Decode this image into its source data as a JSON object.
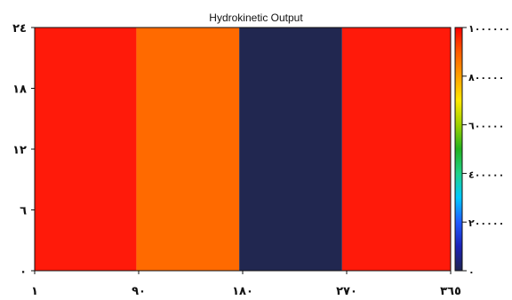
{
  "chart_data": {
    "type": "heatmap",
    "title": "Hydrokinetic Output",
    "x_ticks": [
      "١",
      "٩٠",
      "١٨٠",
      "٢٧٠",
      "٣٦٥"
    ],
    "y_ticks": [
      "٠",
      "٦",
      "١٢",
      "١٨",
      "٢٤"
    ],
    "xlim": [
      1,
      365
    ],
    "ylim": [
      0,
      24
    ],
    "bands": [
      {
        "x_start": 1,
        "x_end": 90,
        "value": 990000
      },
      {
        "x_start": 90,
        "x_end": 180,
        "value": 870000
      },
      {
        "x_start": 180,
        "x_end": 270,
        "value": 0
      },
      {
        "x_start": 270,
        "x_end": 365,
        "value": 990000
      }
    ],
    "colorbar": {
      "range": [
        0,
        1000000
      ],
      "ticks": [
        "٠",
        "٢٠٠٠٠٠",
        "٤٠٠٠٠٠",
        "٦٠٠٠٠٠",
        "٨٠٠٠٠٠",
        "١٠٠٠٠٠٠"
      ],
      "colormap": "jet",
      "colors": [
        "#1e2450",
        "#1c22b8",
        "#1f5cff",
        "#00c8ff",
        "#1fd28a",
        "#22b21f",
        "#9ed200",
        "#ffe800",
        "#ffa000",
        "#ff5a00",
        "#ff0000"
      ]
    },
    "band_colors": [
      "#ff1a0a",
      "#ff6a00",
      "#212750",
      "#ff1a0a"
    ]
  }
}
